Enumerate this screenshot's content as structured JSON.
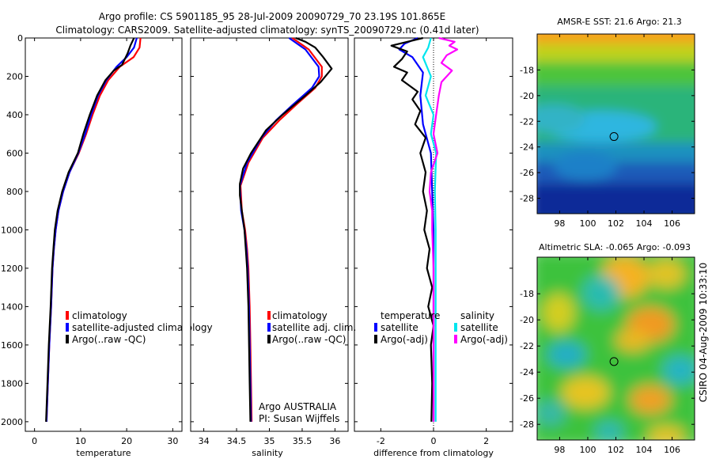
{
  "header": {
    "line1": "Argo profile: CS 5901185_95 28-Jul-2009 20090729_70 23.19S 101.865E",
    "line2": "Climatology: CARS2009. Satellite-adjusted climatology: synTS_20090729.nc (0.41d later)"
  },
  "side_label": "CSIRO 04-Aug-2009 10:33:10",
  "colors": {
    "climatology": "#ff0000",
    "satellite": "#0000ff",
    "argo": "#000000",
    "sal_satellite": "#00e5ee",
    "sal_argo": "#ff00ff"
  },
  "chart_data": [
    {
      "id": "temperature",
      "type": "line",
      "xlabel": "temperature",
      "xlim": [
        -2,
        32
      ],
      "ylim": [
        0,
        2050
      ],
      "y_reversed": true,
      "xticks": [
        0,
        10,
        20,
        30
      ],
      "yticks": [
        0,
        200,
        400,
        600,
        800,
        1000,
        1200,
        1400,
        1600,
        1800,
        2000
      ],
      "legend": [
        "climatology",
        "satellite-adjusted climatology",
        "Argo(..raw -QC)"
      ],
      "series": [
        {
          "name": "climatology",
          "color": "#ff0000",
          "points": [
            [
              23,
              0
            ],
            [
              22.8,
              50
            ],
            [
              21.5,
              100
            ],
            [
              18.5,
              150
            ],
            [
              16,
              220
            ],
            [
              14.2,
              300
            ],
            [
              12.6,
              400
            ],
            [
              11.2,
              500
            ],
            [
              9.6,
              600
            ],
            [
              7.6,
              700
            ],
            [
              6.2,
              800
            ],
            [
              5.2,
              900
            ],
            [
              4.6,
              1000
            ],
            [
              4.2,
              1100
            ],
            [
              3.9,
              1200
            ],
            [
              3.6,
              1400
            ],
            [
              3.2,
              1600
            ],
            [
              2.9,
              1800
            ],
            [
              2.6,
              2000
            ]
          ]
        },
        {
          "name": "satellite-adjusted climatology",
          "color": "#0000ff",
          "points": [
            [
              22.2,
              0
            ],
            [
              21.6,
              50
            ],
            [
              20,
              100
            ],
            [
              17.8,
              150
            ],
            [
              15.6,
              220
            ],
            [
              13.8,
              300
            ],
            [
              12.3,
              400
            ],
            [
              11,
              500
            ],
            [
              9.5,
              600
            ],
            [
              7.6,
              700
            ],
            [
              6.2,
              800
            ],
            [
              5.2,
              900
            ],
            [
              4.6,
              1000
            ],
            [
              4.2,
              1100
            ],
            [
              3.9,
              1200
            ],
            [
              3.6,
              1400
            ],
            [
              3.2,
              1600
            ],
            [
              2.9,
              1800
            ],
            [
              2.6,
              2000
            ]
          ]
        },
        {
          "name": "Argo(..raw -QC)",
          "color": "#000000",
          "points": [
            [
              21.6,
              0
            ],
            [
              20.8,
              40
            ],
            [
              20.2,
              80
            ],
            [
              19,
              140
            ],
            [
              17.2,
              170
            ],
            [
              15.4,
              220
            ],
            [
              13.6,
              300
            ],
            [
              12,
              400
            ],
            [
              10.6,
              500
            ],
            [
              9.4,
              600
            ],
            [
              7.4,
              700
            ],
            [
              6,
              800
            ],
            [
              5,
              900
            ],
            [
              4.4,
              1000
            ],
            [
              4.1,
              1100
            ],
            [
              3.8,
              1200
            ],
            [
              3.5,
              1400
            ],
            [
              3.1,
              1600
            ],
            [
              2.8,
              1800
            ],
            [
              2.5,
              2000
            ]
          ]
        }
      ]
    },
    {
      "id": "salinity",
      "type": "line",
      "xlabel": "salinity",
      "xlim": [
        33.8,
        36.2
      ],
      "ylim": [
        0,
        2050
      ],
      "y_reversed": true,
      "xticks": [
        34,
        34.5,
        35,
        35.5,
        36
      ],
      "legend": [
        "climatology",
        "satellite adj. clim.",
        "Argo(..raw -QC)"
      ],
      "annotation": [
        "Argo AUSTRALIA",
        "PI: Susan Wijffels"
      ],
      "series": [
        {
          "name": "climatology",
          "color": "#ff0000",
          "points": [
            [
              35.35,
              0
            ],
            [
              35.6,
              60
            ],
            [
              35.8,
              150
            ],
            [
              35.8,
              200
            ],
            [
              35.7,
              260
            ],
            [
              35.4,
              350
            ],
            [
              35.15,
              430
            ],
            [
              34.9,
              520
            ],
            [
              34.68,
              650
            ],
            [
              34.56,
              770
            ],
            [
              34.58,
              900
            ],
            [
              34.63,
              1000
            ],
            [
              34.66,
              1100
            ],
            [
              34.68,
              1200
            ],
            [
              34.7,
              1400
            ],
            [
              34.71,
              1600
            ],
            [
              34.72,
              1800
            ],
            [
              34.73,
              2000
            ]
          ]
        },
        {
          "name": "satellite adj. clim.",
          "color": "#0000ff",
          "points": [
            [
              35.3,
              0
            ],
            [
              35.55,
              60
            ],
            [
              35.75,
              150
            ],
            [
              35.76,
              200
            ],
            [
              35.65,
              260
            ],
            [
              35.35,
              350
            ],
            [
              35.1,
              430
            ],
            [
              34.88,
              520
            ],
            [
              34.66,
              650
            ],
            [
              34.55,
              770
            ],
            [
              34.57,
              900
            ],
            [
              34.62,
              1000
            ],
            [
              34.65,
              1100
            ],
            [
              34.67,
              1200
            ],
            [
              34.69,
              1400
            ],
            [
              34.7,
              1600
            ],
            [
              34.71,
              1800
            ],
            [
              34.72,
              2000
            ]
          ]
        },
        {
          "name": "Argo(..raw -QC)",
          "color": "#000000",
          "points": [
            [
              35.4,
              0
            ],
            [
              35.55,
              20
            ],
            [
              35.7,
              50
            ],
            [
              35.82,
              100
            ],
            [
              35.95,
              160
            ],
            [
              35.78,
              230
            ],
            [
              35.55,
              300
            ],
            [
              35.2,
              400
            ],
            [
              34.95,
              480
            ],
            [
              34.72,
              600
            ],
            [
              34.6,
              680
            ],
            [
              34.55,
              760
            ],
            [
              34.55,
              820
            ],
            [
              34.58,
              900
            ],
            [
              34.62,
              1000
            ],
            [
              34.64,
              1100
            ],
            [
              34.66,
              1200
            ],
            [
              34.68,
              1400
            ],
            [
              34.69,
              1600
            ],
            [
              34.7,
              1800
            ],
            [
              34.71,
              2000
            ]
          ]
        }
      ]
    },
    {
      "id": "difference",
      "type": "line",
      "xlabel": "difference from climatology",
      "xlim": [
        -3,
        3
      ],
      "ylim": [
        0,
        2050
      ],
      "y_reversed": true,
      "xticks": [
        -2,
        0,
        2
      ],
      "legend_left_title": "temperature",
      "legend_right_title": "salinity",
      "legend": [
        "satellite",
        "Argo(-adj)",
        "satellite",
        "Argo(-adj)"
      ],
      "series": [
        {
          "name": "satellite",
          "group": "temperature",
          "color": "#0000ff",
          "points": [
            [
              -0.6,
              0
            ],
            [
              -1.1,
              30
            ],
            [
              -1.3,
              60
            ],
            [
              -0.8,
              100
            ],
            [
              -0.4,
              180
            ],
            [
              -0.5,
              300
            ],
            [
              -0.4,
              450
            ],
            [
              -0.1,
              600
            ],
            [
              -0.05,
              800
            ],
            [
              0,
              1000
            ],
            [
              0,
              1400
            ],
            [
              0,
              2000
            ]
          ]
        },
        {
          "name": "Argo(-adj)",
          "group": "temperature",
          "color": "#000000",
          "points": [
            [
              -0.4,
              0
            ],
            [
              -1.6,
              40
            ],
            [
              -1,
              70
            ],
            [
              -1.2,
              110
            ],
            [
              -1.5,
              150
            ],
            [
              -1,
              180
            ],
            [
              -1.2,
              220
            ],
            [
              -0.6,
              280
            ],
            [
              -0.8,
              320
            ],
            [
              -0.5,
              380
            ],
            [
              -0.7,
              450
            ],
            [
              -0.3,
              520
            ],
            [
              -0.5,
              600
            ],
            [
              -0.3,
              700
            ],
            [
              -0.4,
              800
            ],
            [
              -0.25,
              900
            ],
            [
              -0.35,
              1000
            ],
            [
              -0.15,
              1100
            ],
            [
              -0.25,
              1200
            ],
            [
              -0.05,
              1300
            ],
            [
              -0.2,
              1400
            ],
            [
              0,
              1500
            ],
            [
              -0.1,
              1600
            ],
            [
              -0.05,
              1800
            ],
            [
              -0.08,
              2000
            ]
          ]
        },
        {
          "name": "satellite",
          "group": "salinity",
          "color": "#00e5ee",
          "points": [
            [
              -0.1,
              0
            ],
            [
              -0.2,
              50
            ],
            [
              -0.4,
              100
            ],
            [
              -0.1,
              200
            ],
            [
              -0.3,
              300
            ],
            [
              0,
              400
            ],
            [
              -0.1,
              500
            ],
            [
              0.1,
              600
            ],
            [
              0.05,
              800
            ],
            [
              0.08,
              1000
            ],
            [
              0.08,
              1400
            ],
            [
              0.08,
              2000
            ]
          ]
        },
        {
          "name": "Argo(-adj)",
          "group": "salinity",
          "color": "#ff00ff",
          "points": [
            [
              0.2,
              0
            ],
            [
              0.8,
              20
            ],
            [
              0.6,
              40
            ],
            [
              0.9,
              60
            ],
            [
              0.5,
              90
            ],
            [
              0.3,
              130
            ],
            [
              0.7,
              170
            ],
            [
              0.3,
              230
            ],
            [
              0.2,
              300
            ],
            [
              0.1,
              400
            ],
            [
              0,
              500
            ],
            [
              0.15,
              600
            ],
            [
              -0.1,
              700
            ],
            [
              -0.15,
              800
            ],
            [
              -0.05,
              900
            ],
            [
              -0.05,
              1000
            ],
            [
              0,
              1200
            ],
            [
              0,
              1400
            ],
            [
              0,
              2000
            ]
          ]
        }
      ]
    },
    {
      "id": "sst_map",
      "type": "heatmap",
      "title": "AMSR-E SST: 21.6 Argo: 21.3",
      "xlim": [
        96.4,
        107.6
      ],
      "ylim": [
        -29.2,
        -15.2
      ],
      "xticks": [
        98,
        100,
        102,
        104,
        106
      ],
      "yticks": [
        -18,
        -20,
        -22,
        -24,
        -26,
        -28
      ],
      "marker": [
        101.865,
        -23.19
      ]
    },
    {
      "id": "sla_map",
      "type": "heatmap",
      "title": "Altimetric SLA: -0.065 Argo: -0.093",
      "xlim": [
        96.4,
        107.6
      ],
      "ylim": [
        -29.2,
        -15.2
      ],
      "xticks": [
        98,
        100,
        102,
        104,
        106
      ],
      "yticks": [
        -18,
        -20,
        -22,
        -24,
        -26,
        -28
      ],
      "marker": [
        101.865,
        -23.19
      ]
    }
  ]
}
